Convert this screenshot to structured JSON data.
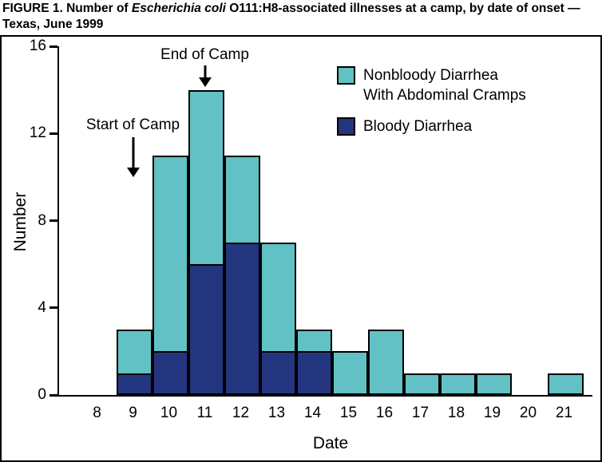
{
  "title": {
    "prefix": "FIGURE 1. Number of ",
    "italic": "Escherichia coli",
    "suffix": " O111:H8-associated illnesses at a camp, by date of onset — Texas, June 1999"
  },
  "chart_data": {
    "type": "bar",
    "stacked": true,
    "categories": [
      8,
      9,
      10,
      11,
      12,
      13,
      14,
      15,
      16,
      17,
      18,
      19,
      20,
      21
    ],
    "series": [
      {
        "name": "Nonbloody Diarrhea With Abdominal Cramps",
        "legend_label": "Nonbloody Diarrhea\nWith Abdominal Cramps",
        "color": "#62c1c4",
        "values": [
          0,
          2,
          9,
          8,
          4,
          5,
          1,
          2,
          3,
          1,
          1,
          1,
          0,
          1
        ]
      },
      {
        "name": "Bloody Diarrhea",
        "legend_label": "Bloody Diarrhea",
        "color": "#24357f",
        "values": [
          0,
          1,
          2,
          6,
          7,
          2,
          2,
          0,
          0,
          0,
          0,
          0,
          0,
          0
        ]
      }
    ],
    "stack_bottom_series": "Bloody Diarrhea",
    "totals": [
      0,
      3,
      11,
      14,
      11,
      7,
      3,
      2,
      3,
      1,
      1,
      1,
      0,
      1
    ],
    "xlabel": "Date",
    "ylabel": "Number",
    "ylim": [
      0,
      16
    ],
    "yticks": [
      0,
      4,
      8,
      12,
      16
    ],
    "grid": false,
    "legend_position": "top-right",
    "annotations": [
      {
        "text": "Start of Camp",
        "category": 9
      },
      {
        "text": "End of Camp",
        "category": 11
      }
    ]
  }
}
